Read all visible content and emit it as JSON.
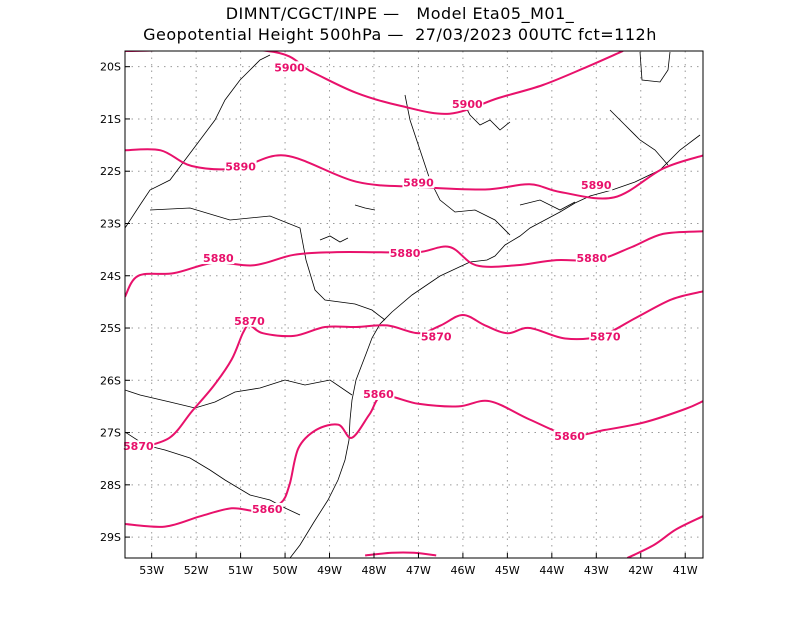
{
  "header": {
    "line1": "DIMNT/CGCT/INPE —   Model Eta05_M01_",
    "line2": "Geopotential Height 500hPa —  27/03/2023 00UTC fct=112h"
  },
  "axes": {
    "lon_labels": [
      "53W",
      "52W",
      "51W",
      "50W",
      "49W",
      "48W",
      "47W",
      "46W",
      "45W",
      "44W",
      "43W",
      "42W",
      "41W"
    ],
    "lat_labels": [
      "20S",
      "21S",
      "22S",
      "23S",
      "24S",
      "25S",
      "26S",
      "27S",
      "28S",
      "29S"
    ],
    "grid": "dotted"
  },
  "colors": {
    "contour": "#e8116b",
    "coast": "#000000",
    "grid": "#9a9a9a"
  },
  "chart_data": {
    "type": "map-contour",
    "variable": "Geopotential Height 500hPa",
    "units": "m",
    "lon_range": [
      -53.6,
      -40.6
    ],
    "lat_range": [
      -29.4,
      -19.7
    ],
    "contour_labels": [
      {
        "text": "5900",
        "lon": -49.9,
        "lat": -20.05
      },
      {
        "text": "5900",
        "lon": -45.9,
        "lat": -20.75
      },
      {
        "text": "5890",
        "lon": -51.0,
        "lat": -21.95
      },
      {
        "text": "5890",
        "lon": -47.0,
        "lat": -22.25
      },
      {
        "text": "5890",
        "lon": -43.0,
        "lat": -22.3
      },
      {
        "text": "5880",
        "lon": -51.5,
        "lat": -23.7
      },
      {
        "text": "5880",
        "lon": -47.3,
        "lat": -23.6
      },
      {
        "text": "5880",
        "lon": -43.1,
        "lat": -23.7
      },
      {
        "text": "5870",
        "lon": -50.8,
        "lat": -24.9
      },
      {
        "text": "5870",
        "lon": -46.6,
        "lat": -25.2
      },
      {
        "text": "5870",
        "lon": -42.8,
        "lat": -25.2
      },
      {
        "text": "5870",
        "lon": -53.3,
        "lat": -27.3
      },
      {
        "text": "5860",
        "lon": -47.9,
        "lat": -26.3
      },
      {
        "text": "5860",
        "lon": -43.6,
        "lat": -27.1
      },
      {
        "text": "5860",
        "lon": -50.4,
        "lat": -28.5
      }
    ],
    "contours": [
      {
        "level": 5900,
        "points": [
          [
            -53.6,
            -19.7
          ],
          [
            -50.4,
            -19.7
          ],
          [
            -49.4,
            -20.1
          ],
          [
            -48.4,
            -20.5
          ],
          [
            -47.4,
            -20.75
          ],
          [
            -46.3,
            -20.9
          ],
          [
            -45.2,
            -20.6
          ],
          [
            -44.2,
            -20.35
          ],
          [
            -43.2,
            -20.0
          ],
          [
            -42.4,
            -19.7
          ]
        ]
      },
      {
        "level": 5890,
        "points": [
          [
            -53.6,
            -21.6
          ],
          [
            -52.8,
            -21.6
          ],
          [
            -52.1,
            -21.9
          ],
          [
            -51.1,
            -21.95
          ],
          [
            -50.0,
            -21.7
          ],
          [
            -48.4,
            -22.2
          ],
          [
            -47.0,
            -22.3
          ],
          [
            -45.5,
            -22.35
          ],
          [
            -44.5,
            -22.25
          ],
          [
            -43.8,
            -22.4
          ],
          [
            -42.6,
            -22.5
          ],
          [
            -41.5,
            -21.95
          ],
          [
            -40.6,
            -21.7
          ]
        ]
      },
      {
        "level": 5880,
        "points": [
          [
            -53.6,
            -24.4
          ],
          [
            -53.3,
            -24.0
          ],
          [
            -52.5,
            -23.95
          ],
          [
            -51.6,
            -23.75
          ],
          [
            -50.7,
            -23.8
          ],
          [
            -49.8,
            -23.6
          ],
          [
            -48.9,
            -23.55
          ],
          [
            -47.9,
            -23.55
          ],
          [
            -47.0,
            -23.55
          ],
          [
            -46.3,
            -23.45
          ],
          [
            -45.7,
            -23.8
          ],
          [
            -44.8,
            -23.8
          ],
          [
            -43.9,
            -23.7
          ],
          [
            -43.0,
            -23.7
          ],
          [
            -42.2,
            -23.45
          ],
          [
            -41.5,
            -23.2
          ],
          [
            -40.6,
            -23.15
          ]
        ]
      },
      {
        "level": 5870,
        "points": [
          [
            -53.3,
            -27.3
          ],
          [
            -52.6,
            -27.1
          ],
          [
            -52.1,
            -26.6
          ],
          [
            -51.6,
            -26.1
          ],
          [
            -51.2,
            -25.6
          ],
          [
            -50.95,
            -25.1
          ],
          [
            -50.8,
            -24.95
          ],
          [
            -50.5,
            -25.1
          ],
          [
            -49.8,
            -25.15
          ],
          [
            -49.1,
            -24.98
          ],
          [
            -48.4,
            -24.98
          ],
          [
            -47.7,
            -24.95
          ],
          [
            -47.0,
            -25.1
          ],
          [
            -46.5,
            -24.95
          ],
          [
            -46.0,
            -24.75
          ],
          [
            -45.5,
            -24.95
          ],
          [
            -45.0,
            -25.1
          ],
          [
            -44.5,
            -25.0
          ],
          [
            -43.7,
            -25.2
          ],
          [
            -42.9,
            -25.15
          ],
          [
            -42.1,
            -24.8
          ],
          [
            -41.3,
            -24.45
          ],
          [
            -40.6,
            -24.3
          ]
        ]
      },
      {
        "level": 5860,
        "points": [
          [
            -53.6,
            -28.75
          ],
          [
            -52.7,
            -28.8
          ],
          [
            -51.9,
            -28.6
          ],
          [
            -51.2,
            -28.45
          ],
          [
            -50.6,
            -28.5
          ],
          [
            -50.1,
            -28.35
          ],
          [
            -49.9,
            -28.0
          ],
          [
            -49.7,
            -27.3
          ],
          [
            -49.3,
            -26.95
          ],
          [
            -48.8,
            -26.85
          ],
          [
            -48.5,
            -27.1
          ],
          [
            -48.1,
            -26.65
          ],
          [
            -47.8,
            -26.3
          ],
          [
            -47.0,
            -26.45
          ],
          [
            -46.1,
            -26.5
          ],
          [
            -45.4,
            -26.4
          ],
          [
            -44.5,
            -26.75
          ],
          [
            -43.6,
            -27.05
          ],
          [
            -42.8,
            -26.95
          ],
          [
            -41.9,
            -26.8
          ],
          [
            -41.0,
            -26.55
          ],
          [
            -40.6,
            -26.4
          ]
        ]
      },
      {
        "level": 5850,
        "points": [
          [
            -48.2,
            -29.35
          ],
          [
            -47.6,
            -29.3
          ],
          [
            -47.1,
            -29.3
          ],
          [
            -46.6,
            -29.35
          ]
        ]
      },
      {
        "level": 5850,
        "points": [
          [
            -42.3,
            -29.4
          ],
          [
            -41.7,
            -29.15
          ],
          [
            -41.2,
            -28.85
          ],
          [
            -40.6,
            -28.6
          ]
        ]
      }
    ]
  }
}
